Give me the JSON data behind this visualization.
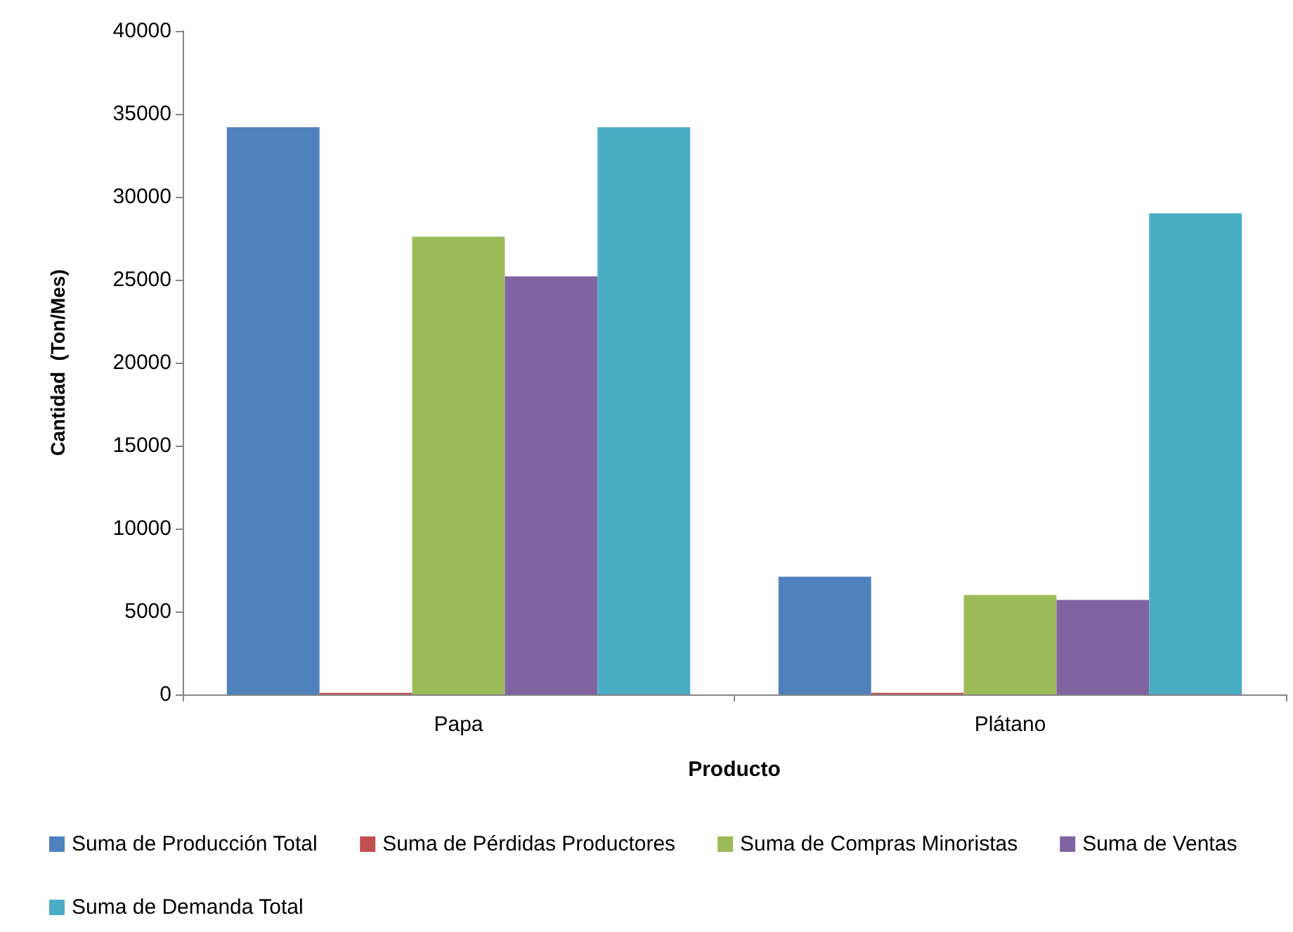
{
  "chart_data": {
    "type": "bar",
    "xlabel": "Producto",
    "ylabel": "Cantidad  (Ton/Mes)",
    "categories": [
      "Papa",
      "Plátano"
    ],
    "series": [
      {
        "name": "Suma de Producción Total",
        "color": "#4f81bd",
        "values": [
          34200,
          7100
        ]
      },
      {
        "name": "Suma de Pérdidas Productores",
        "color": "#c0504d",
        "values": [
          100,
          100
        ]
      },
      {
        "name": "Suma de Compras Minoristas",
        "color": "#9bbb59",
        "values": [
          27600,
          6000
        ]
      },
      {
        "name": "Suma de Ventas",
        "color": "#8064a2",
        "values": [
          25200,
          5700
        ]
      },
      {
        "name": "Suma de Demanda Total",
        "color": "#4bacc6",
        "values": [
          34200,
          29000
        ]
      }
    ],
    "ylim": [
      0,
      40000
    ],
    "yticks": [
      0,
      5000,
      10000,
      15000,
      20000,
      25000,
      30000,
      35000,
      40000
    ],
    "grid": false,
    "legend": "bottom"
  }
}
